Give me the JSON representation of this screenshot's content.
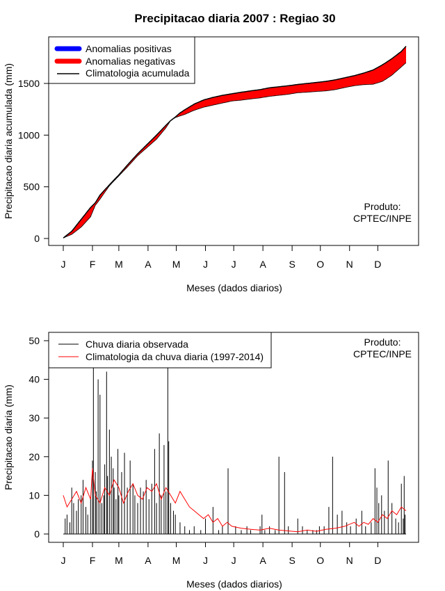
{
  "colors": {
    "positive": "#0000ff",
    "negative": "#ff0000",
    "climatology_line": "#000000",
    "observed_bars": "#000000",
    "climatology_daily": "#ff0000"
  },
  "chart_data": [
    {
      "type": "area",
      "title": "Precipitacao diaria 2007 : Regiao 30",
      "xlabel": "Meses (dados diarios)",
      "ylabel": "Precipitacao diaria acumulada (mm)",
      "x_unit": "day of year",
      "xlim": [
        1,
        365
      ],
      "ylim": [
        0,
        1880
      ],
      "yticks": [
        0,
        500,
        1000,
        1500
      ],
      "month_ticks": [
        {
          "label": "J",
          "day": 1
        },
        {
          "label": "F",
          "day": 32
        },
        {
          "label": "M",
          "day": 60
        },
        {
          "label": "A",
          "day": 91
        },
        {
          "label": "M",
          "day": 121
        },
        {
          "label": "J",
          "day": 152
        },
        {
          "label": "J",
          "day": 182
        },
        {
          "label": "A",
          "day": 213
        },
        {
          "label": "S",
          "day": 244
        },
        {
          "label": "O",
          "day": 274
        },
        {
          "label": "N",
          "day": 305
        },
        {
          "label": "D",
          "day": 335
        }
      ],
      "legend": {
        "position": "top-left",
        "entries": [
          "Anomalias positivas",
          "Anomalias negativas",
          "Climatologia acumulada"
        ]
      },
      "annotation": [
        "Produto:",
        "CPTEC/INPE"
      ],
      "series": [
        {
          "name": "Climatologia acumulada",
          "x": [
            1,
            10,
            20,
            30,
            35,
            40,
            50,
            60,
            70,
            80,
            90,
            100,
            110,
            115,
            120,
            125,
            130,
            140,
            150,
            160,
            170,
            180,
            190,
            200,
            210,
            220,
            230,
            240,
            250,
            260,
            270,
            280,
            290,
            300,
            310,
            320,
            330,
            340,
            350,
            360,
            365
          ],
          "values": [
            5,
            70,
            185,
            300,
            345,
            420,
            520,
            615,
            720,
            820,
            910,
            1000,
            1095,
            1140,
            1175,
            1215,
            1245,
            1300,
            1340,
            1365,
            1385,
            1400,
            1415,
            1428,
            1440,
            1458,
            1468,
            1478,
            1490,
            1500,
            1510,
            1520,
            1535,
            1555,
            1575,
            1600,
            1630,
            1680,
            1740,
            1810,
            1860
          ]
        },
        {
          "name": "Observada acumulada",
          "x": [
            1,
            10,
            20,
            30,
            35,
            40,
            50,
            60,
            70,
            80,
            90,
            100,
            110,
            115,
            120,
            125,
            130,
            140,
            150,
            160,
            170,
            180,
            190,
            200,
            210,
            220,
            230,
            240,
            250,
            260,
            270,
            280,
            290,
            300,
            310,
            320,
            330,
            340,
            350,
            360,
            365
          ],
          "values": [
            5,
            40,
            110,
            210,
            320,
            380,
            510,
            605,
            700,
            800,
            880,
            960,
            1070,
            1140,
            1170,
            1185,
            1200,
            1240,
            1270,
            1290,
            1310,
            1330,
            1338,
            1350,
            1360,
            1375,
            1385,
            1395,
            1410,
            1415,
            1422,
            1428,
            1440,
            1460,
            1478,
            1488,
            1492,
            1520,
            1580,
            1660,
            1700
          ]
        }
      ]
    },
    {
      "type": "bar",
      "xlabel": "Meses (dados diarios)",
      "ylabel": "Precipitacao diaria (mm)",
      "x_unit": "day of year",
      "xlim": [
        1,
        365
      ],
      "ylim": [
        0,
        50
      ],
      "yticks": [
        0,
        10,
        20,
        30,
        40,
        50
      ],
      "month_ticks": [
        {
          "label": "J",
          "day": 1
        },
        {
          "label": "F",
          "day": 32
        },
        {
          "label": "M",
          "day": 60
        },
        {
          "label": "A",
          "day": 91
        },
        {
          "label": "M",
          "day": 121
        },
        {
          "label": "J",
          "day": 152
        },
        {
          "label": "J",
          "day": 182
        },
        {
          "label": "A",
          "day": 213
        },
        {
          "label": "S",
          "day": 244
        },
        {
          "label": "O",
          "day": 274
        },
        {
          "label": "N",
          "day": 305
        },
        {
          "label": "D",
          "day": 335
        }
      ],
      "legend": {
        "position": "top-left",
        "entries": [
          "Chuva diaria observada",
          "Climatologia da chuva diaria (1997-2014)"
        ]
      },
      "annotation": [
        "Produto:",
        "CPTEC/INPE"
      ],
      "series": [
        {
          "name": "Chuva diaria observada",
          "x": [
            3,
            5,
            8,
            10,
            12,
            15,
            17,
            20,
            22,
            25,
            27,
            30,
            32,
            33,
            35,
            36,
            38,
            40,
            42,
            44,
            45,
            47,
            48,
            50,
            52,
            54,
            55,
            57,
            59,
            60,
            63,
            66,
            69,
            72,
            75,
            77,
            80,
            83,
            86,
            89,
            92,
            95,
            98,
            100,
            103,
            105,
            108,
            110,
            112,
            113,
            115,
            118,
            120,
            125,
            130,
            135,
            140,
            147,
            152,
            160,
            166,
            170,
            176,
            184,
            190,
            196,
            200,
            210,
            212,
            215,
            220,
            226,
            230,
            236,
            240,
            250,
            255,
            260,
            266,
            270,
            273,
            278,
            283,
            287,
            292,
            297,
            302,
            306,
            312,
            318,
            322,
            328,
            332,
            334,
            336,
            339,
            342,
            346,
            350,
            354,
            357,
            360,
            362,
            363,
            364
          ],
          "values": [
            4,
            5,
            3,
            12,
            8,
            6,
            9,
            10,
            14,
            7,
            5,
            9,
            19,
            43,
            16,
            11,
            40,
            36,
            8,
            10,
            18,
            42,
            15,
            27,
            20,
            17,
            12,
            9,
            22,
            10,
            16,
            21,
            12,
            19,
            13,
            10,
            8,
            12,
            11,
            14,
            9,
            13,
            22,
            8,
            26,
            10,
            23,
            11,
            45,
            24,
            8,
            6,
            5,
            3,
            2,
            1,
            2,
            1,
            4,
            7,
            1,
            2,
            17,
            2,
            1,
            2,
            1,
            2,
            5,
            1,
            2,
            1,
            20,
            16,
            2,
            4,
            2,
            1,
            1,
            1,
            2,
            2,
            7,
            20,
            5,
            6,
            3,
            2,
            4,
            6,
            2,
            3,
            17,
            12,
            8,
            10,
            6,
            19,
            8,
            4,
            3,
            13,
            4,
            15,
            5
          ]
        },
        {
          "name": "Climatologia da chuva diaria (1997-2014)",
          "x": [
            1,
            5,
            10,
            15,
            20,
            25,
            30,
            32,
            35,
            40,
            45,
            50,
            55,
            60,
            65,
            70,
            75,
            80,
            85,
            90,
            95,
            100,
            105,
            110,
            115,
            120,
            125,
            130,
            135,
            140,
            145,
            150,
            155,
            160,
            165,
            170,
            175,
            180,
            190,
            200,
            210,
            220,
            230,
            240,
            250,
            260,
            270,
            280,
            290,
            300,
            305,
            310,
            315,
            320,
            325,
            330,
            335,
            340,
            345,
            350,
            355,
            360,
            365
          ],
          "values": [
            10,
            7,
            9,
            11,
            8,
            12,
            9,
            17,
            10,
            8,
            12,
            10,
            14,
            12,
            8,
            11,
            13,
            10,
            9,
            12,
            11,
            13,
            9,
            12,
            10,
            8,
            11,
            9,
            7,
            6,
            5,
            4,
            5,
            3,
            4,
            2,
            3,
            2,
            1.5,
            1.2,
            1,
            1.5,
            1,
            0.8,
            0.6,
            1,
            0.7,
            1.2,
            1.5,
            2,
            2.5,
            3,
            2,
            3,
            2.5,
            4,
            3,
            5,
            4,
            6,
            5,
            7,
            6
          ]
        }
      ]
    }
  ]
}
